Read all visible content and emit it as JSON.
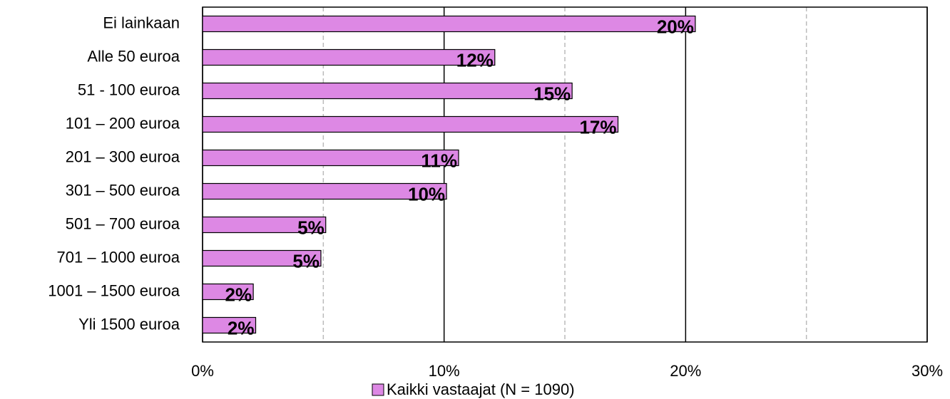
{
  "chart_data": {
    "type": "barh",
    "categories": [
      "Ei lainkaan",
      "Alle 50 euroa",
      "51 - 100 euroa",
      "101 – 200 euroa",
      "201 – 300 euroa",
      "301 – 500 euroa",
      "501 – 700 euroa",
      "701 – 1000 euroa",
      "1001 – 1500 euroa",
      "Yli 1500 euroa"
    ],
    "series": [
      {
        "name": "Kaikki vastaajat (N = 1090)",
        "color": "#dd88e4",
        "values": [
          20.4,
          12.1,
          15.3,
          17.2,
          10.6,
          10.1,
          5.1,
          4.9,
          2.1,
          2.2
        ],
        "value_labels": [
          "20%",
          "12%",
          "15%",
          "17%",
          "11%",
          "10%",
          "5%",
          "5%",
          "2%",
          "2%"
        ]
      }
    ],
    "xlim": [
      0,
      30
    ],
    "xticks": [
      {
        "value": 0,
        "label": "0%"
      },
      {
        "value": 10,
        "label": "10%"
      },
      {
        "value": 20,
        "label": "20%"
      },
      {
        "value": 30,
        "label": "30%"
      }
    ],
    "minor_xticks": [
      5,
      15,
      25
    ],
    "grid": true,
    "legend": "bottom"
  }
}
